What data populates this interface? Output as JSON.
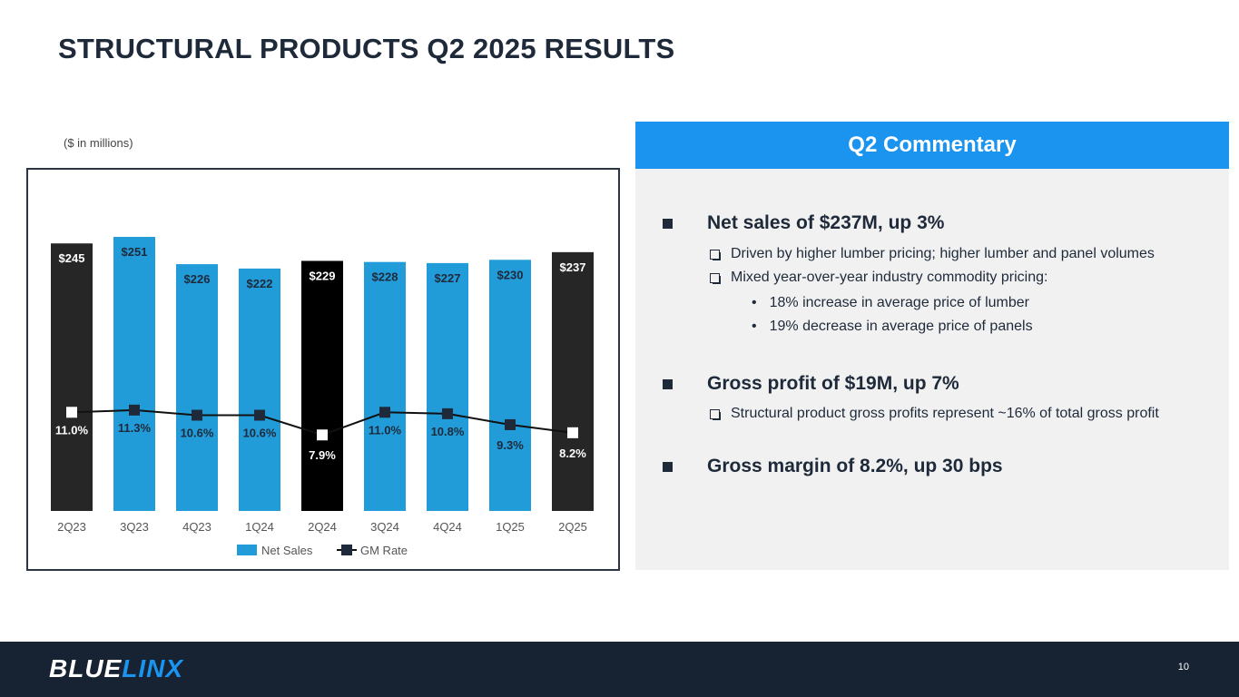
{
  "title": "STRUCTURAL PRODUCTS Q2 2025 RESULTS",
  "units_note": "($ in millions)",
  "commentary": {
    "header": "Q2 Commentary",
    "net_sales": {
      "heading": "Net sales of $237M, up 3%",
      "sub1": "Driven by higher lumber pricing; higher lumber and panel volumes",
      "sub2": "Mixed year-over-year industry commodity pricing:",
      "dot1": "18% increase in average price of lumber",
      "dot2": "19% decrease in average price of panels"
    },
    "gross_profit": {
      "heading": "Gross profit of $19M, up 7%",
      "sub1": "Structural product gross profits represent ~16% of total gross profit"
    },
    "gross_margin": {
      "heading": "Gross margin of 8.2%, up 30 bps"
    }
  },
  "chart_data": {
    "type": "bar",
    "title": "",
    "categories": [
      "2Q23",
      "3Q23",
      "4Q23",
      "1Q24",
      "2Q24",
      "3Q24",
      "4Q24",
      "1Q25",
      "2Q25"
    ],
    "series": [
      {
        "name": "Net Sales",
        "kind": "bar",
        "values": [
          245,
          251,
          226,
          222,
          229,
          228,
          227,
          230,
          237
        ],
        "labels": [
          "$245",
          "$251",
          "$226",
          "$222",
          "$229",
          "$228",
          "$227",
          "$230",
          "$237"
        ]
      },
      {
        "name": "GM Rate",
        "kind": "line",
        "values": [
          11.0,
          11.3,
          10.6,
          10.6,
          7.9,
          11.0,
          10.8,
          9.3,
          8.2
        ],
        "labels": [
          "11.0%",
          "11.3%",
          "10.6%",
          "10.6%",
          "7.9%",
          "11.0%",
          "10.8%",
          "9.3%",
          "8.2%"
        ]
      }
    ],
    "bar_colors": [
      "#262626",
      "#229bd9",
      "#229bd9",
      "#229bd9",
      "#000000",
      "#229bd9",
      "#229bd9",
      "#229bd9",
      "#262626"
    ],
    "bar_ylim": [
      0,
      251
    ],
    "line_ylim": [
      -2.5,
      35
    ],
    "legend": [
      "Net Sales",
      "GM Rate"
    ],
    "legend_position": "bottom",
    "grid": false
  },
  "footer": {
    "logo_part1": "BLUE",
    "logo_part2": "LINX",
    "page_number": "10"
  }
}
